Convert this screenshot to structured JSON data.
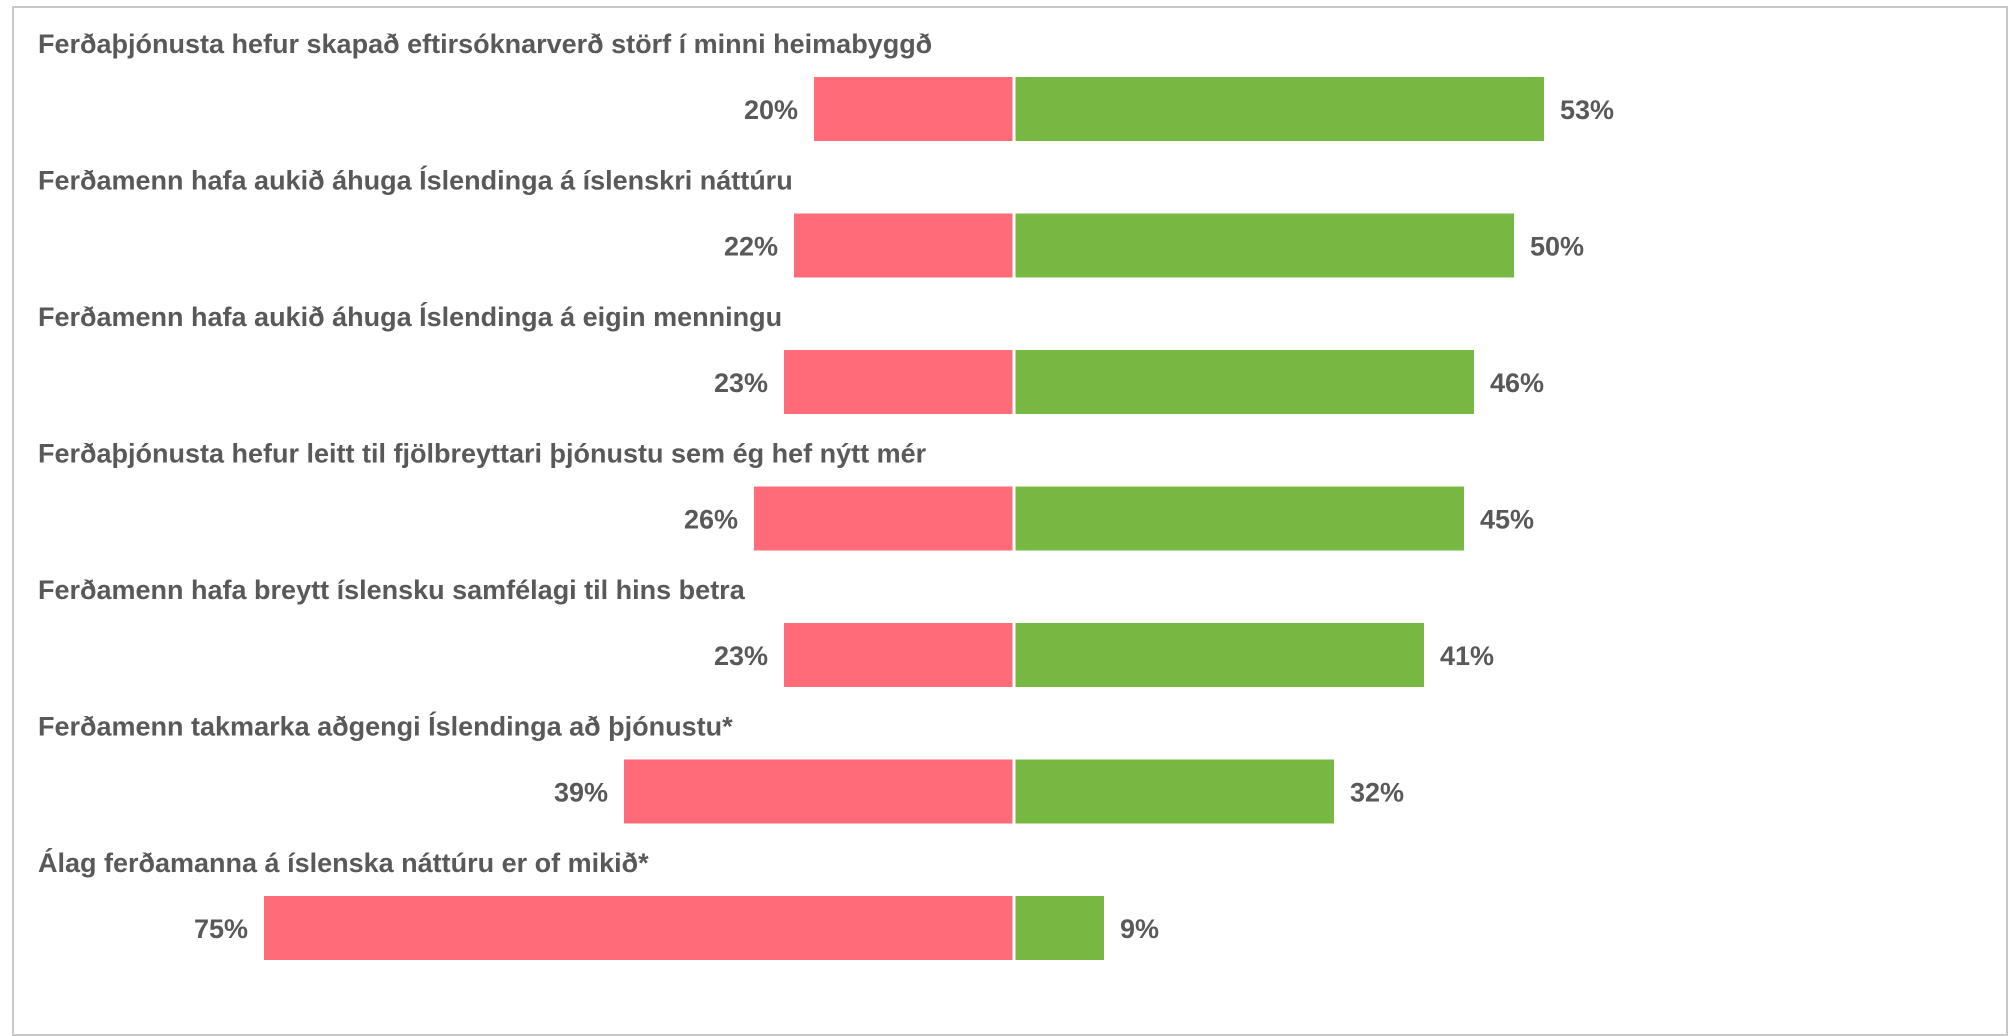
{
  "chart_data": {
    "type": "bar",
    "orientation": "horizontal-diverging",
    "title": "",
    "xlabel": "",
    "ylabel": "",
    "grid": false,
    "legend": "none",
    "categories": [
      "Ferðaþjónusta hefur skapað eftirsóknarverð störf í minni heimabyggð",
      "Ferðamenn hafa aukið áhuga Íslendinga á íslenskri náttúru",
      "Ferðamenn hafa aukið áhuga Íslendinga á eigin menningu",
      "Ferðaþjónusta hefur leitt til fjölbreyttari þjónustu sem ég hef nýtt mér",
      "Ferðamenn hafa breytt íslensku samfélagi til hins betra",
      "Ferðamenn takmarka aðgengi Íslendinga að þjónustu*",
      "Álag ferðamanna á íslenska náttúru er of mikið*"
    ],
    "series": [
      {
        "values": [
          20,
          22,
          23,
          26,
          23,
          39,
          75
        ],
        "color": "#ff6b78",
        "direction": "left"
      },
      {
        "values": [
          53,
          50,
          46,
          45,
          41,
          32,
          9
        ],
        "color": "#77b843",
        "direction": "right"
      }
    ],
    "value_labels_left": [
      "20%",
      "22%",
      "23%",
      "26%",
      "23%",
      "39%",
      "75%"
    ],
    "value_labels_right": [
      "53%",
      "50%",
      "46%",
      "45%",
      "41%",
      "32%",
      "9%"
    ]
  }
}
